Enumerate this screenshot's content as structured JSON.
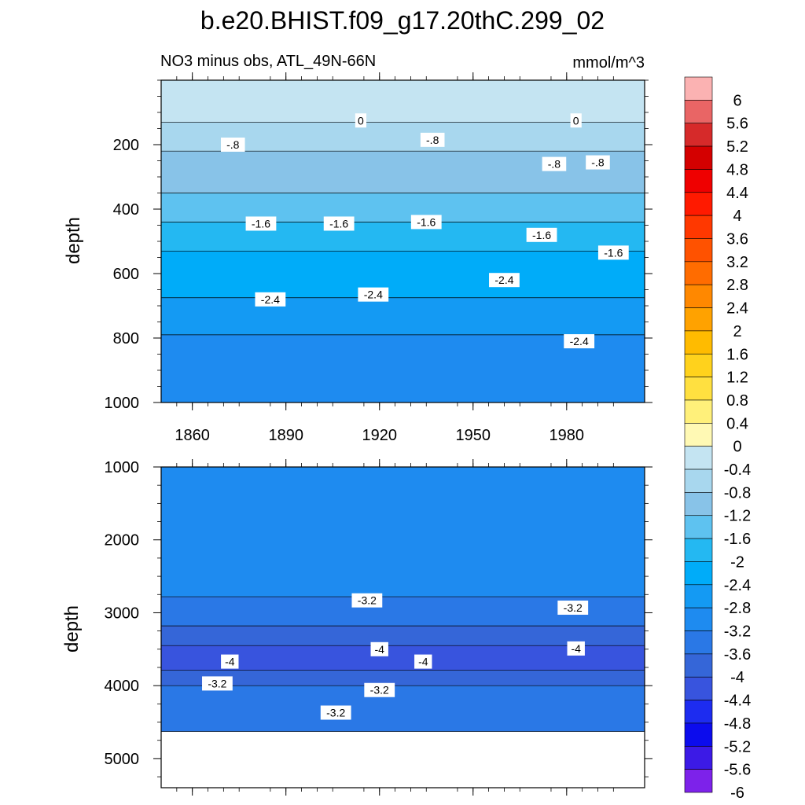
{
  "chart_data": {
    "type": "heatmap",
    "title": "b.e20.BHIST.f09_g17.20thC.299_02",
    "subtitle_left": "NO3 minus obs, ATL_49N-66N",
    "subtitle_right": "mmol/m^3",
    "colorbar": {
      "levels": [
        6,
        5.6,
        5.2,
        4.8,
        4.4,
        4,
        3.6,
        3.2,
        2.8,
        2.4,
        2,
        1.6,
        1.2,
        0.8,
        0.4,
        0,
        -0.4,
        -0.8,
        -1.2,
        -1.6,
        -2,
        -2.4,
        -2.8,
        -3.2,
        -3.6,
        -4,
        -4.4,
        -4.8,
        -5.2,
        -5.6,
        -6
      ],
      "labels": [
        "6",
        "5.6",
        "5.2",
        "4.8",
        "4.4",
        "4",
        "3.6",
        "3.2",
        "2.8",
        "2.4",
        "2",
        "1.6",
        "1.2",
        "0.8",
        "0.4",
        "0",
        "-0.4",
        "-0.8",
        "-1.2",
        "-1.6",
        "-2",
        "-2.4",
        "-2.8",
        "-3.2",
        "-3.6",
        "-4",
        "-4.4",
        "-4.8",
        "-5.2",
        "-5.6",
        "-6"
      ],
      "colors": [
        "#fbb2b2",
        "#e96565",
        "#d62a2a",
        "#d40000",
        "#ef0000",
        "#ff1a00",
        "#ff3800",
        "#ff5200",
        "#ff6c00",
        "#ff8800",
        "#ffa200",
        "#ffbb00",
        "#ffd21c",
        "#ffe040",
        "#fff07a",
        "#fff9b4",
        "#c4e4f2",
        "#a8d7ee",
        "#88c3e8",
        "#5ec2f0",
        "#24b8f2",
        "#00acf9",
        "#149af3",
        "#1e8bf0",
        "#2a78e6",
        "#3566d8",
        "#3854de",
        "#1d2cf0",
        "#0c0ced",
        "#3c1ae6",
        "#7d22ea"
      ]
    },
    "panels": [
      {
        "name": "upper",
        "ylabel": "depth",
        "xlabel": "",
        "xlim": [
          1850,
          2005
        ],
        "ylim": [
          1000,
          0
        ],
        "x_ticks": [
          1860,
          1890,
          1920,
          1950,
          1980
        ],
        "y_ticks": [
          200,
          400,
          600,
          800,
          1000
        ],
        "layers": [
          {
            "top": 0,
            "value": -0.4
          },
          {
            "top": 130,
            "value": -0.8
          },
          {
            "top": 220,
            "value": -1.2
          },
          {
            "top": 350,
            "value": -1.6
          },
          {
            "top": 440,
            "value": -2.0
          },
          {
            "top": 530,
            "value": -2.4
          },
          {
            "top": 675,
            "value": -2.8
          },
          {
            "top": 790,
            "value": -3.2
          }
        ],
        "contour_labels": [
          {
            "text": "0",
            "x": 1914,
            "y": 125
          },
          {
            "text": "0",
            "x": 1983,
            "y": 125
          },
          {
            "text": "-.8",
            "x": 1873,
            "y": 200
          },
          {
            "text": "-.8",
            "x": 1937,
            "y": 185
          },
          {
            "text": "-.8",
            "x": 1976,
            "y": 260
          },
          {
            "text": "-.8",
            "x": 1990,
            "y": 255
          },
          {
            "text": "-1.6",
            "x": 1882,
            "y": 445
          },
          {
            "text": "-1.6",
            "x": 1907,
            "y": 445
          },
          {
            "text": "-1.6",
            "x": 1935,
            "y": 440
          },
          {
            "text": "-1.6",
            "x": 1972,
            "y": 480
          },
          {
            "text": "-1.6",
            "x": 1995,
            "y": 535
          },
          {
            "text": "-2.4",
            "x": 1885,
            "y": 680
          },
          {
            "text": "-2.4",
            "x": 1918,
            "y": 665
          },
          {
            "text": "-2.4",
            "x": 1960,
            "y": 620
          },
          {
            "text": "-2.4",
            "x": 1984,
            "y": 810
          }
        ]
      },
      {
        "name": "lower",
        "ylabel": "depth",
        "xlabel": "",
        "xlim": [
          1850,
          2005
        ],
        "ylim": [
          5400,
          1000
        ],
        "y_ticks": [
          1000,
          2000,
          3000,
          4000,
          5000
        ],
        "data_bottom": 4630,
        "layers": [
          {
            "top": 1000,
            "value": -3.2
          },
          {
            "top": 2780,
            "value": -3.6
          },
          {
            "top": 3180,
            "value": -4.0
          },
          {
            "top": 3450,
            "value": -4.4
          },
          {
            "top": 3790,
            "value": -4.0
          },
          {
            "top": 4000,
            "value": -3.6
          }
        ],
        "contour_labels": [
          {
            "text": "-3.2",
            "x": 1916,
            "y": 2830
          },
          {
            "text": "-3.2",
            "x": 1982,
            "y": 2930
          },
          {
            "text": "-4",
            "x": 1872,
            "y": 3670
          },
          {
            "text": "-4",
            "x": 1920,
            "y": 3500
          },
          {
            "text": "-4",
            "x": 1934,
            "y": 3670
          },
          {
            "text": "-4",
            "x": 1983,
            "y": 3490
          },
          {
            "text": "-3.2",
            "x": 1868,
            "y": 3970
          },
          {
            "text": "-3.2",
            "x": 1920,
            "y": 4060
          },
          {
            "text": "-3.2",
            "x": 1906,
            "y": 4370
          }
        ]
      }
    ]
  }
}
